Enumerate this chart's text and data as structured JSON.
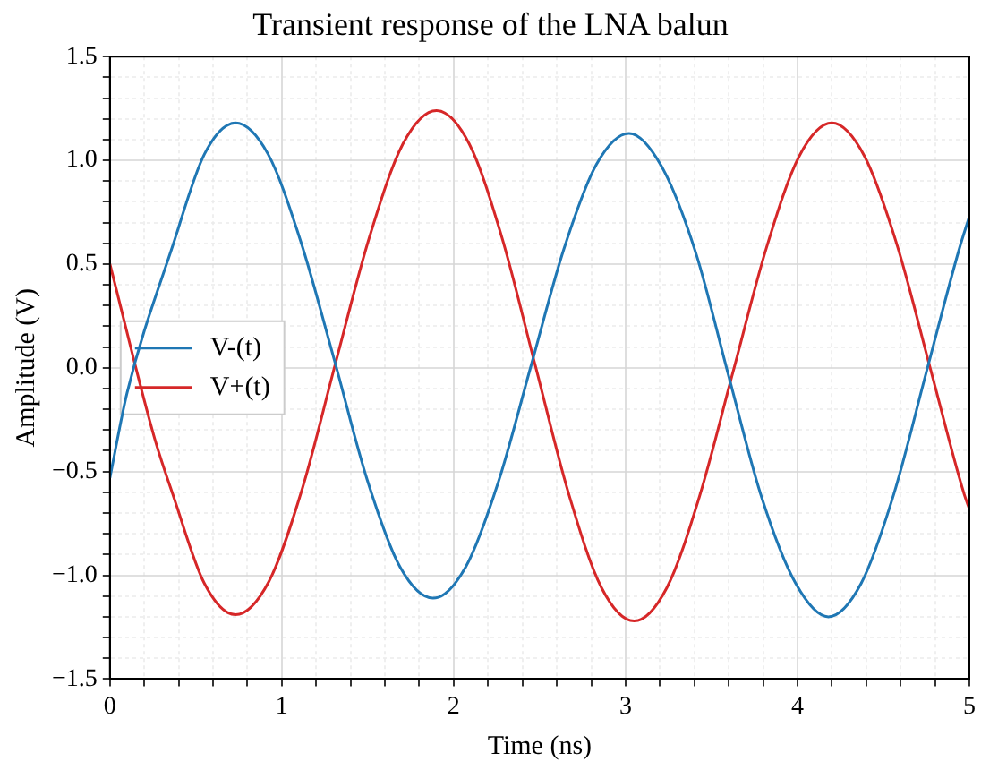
{
  "chart_data": {
    "type": "line",
    "title": "Transient response of the LNA balun",
    "xlabel": "Time (ns)",
    "ylabel": "Amplitude (V)",
    "xlim": [
      0,
      5
    ],
    "ylim": [
      -1.5,
      1.5
    ],
    "xticks": [
      0,
      {
        "value": 0.2,
        "label": null
      },
      {
        "value": 0.4,
        "label": null
      },
      {
        "value": 0.6,
        "label": null
      },
      {
        "value": 0.8,
        "label": null
      },
      1,
      {
        "value": 1.2,
        "label": null
      },
      {
        "value": 1.4,
        "label": null
      },
      {
        "value": 1.6,
        "label": null
      },
      {
        "value": 1.8,
        "label": null
      },
      2,
      {
        "value": 2.2,
        "label": null
      },
      {
        "value": 2.4,
        "label": null
      },
      {
        "value": 2.6,
        "label": null
      },
      {
        "value": 2.8,
        "label": null
      },
      3,
      {
        "value": 3.2,
        "label": null
      },
      {
        "value": 3.4,
        "label": null
      },
      {
        "value": 3.6,
        "label": null
      },
      {
        "value": 3.8,
        "label": null
      },
      4,
      {
        "value": 4.2,
        "label": null
      },
      {
        "value": 4.4,
        "label": null
      },
      {
        "value": 4.6,
        "label": null
      },
      {
        "value": 4.8,
        "label": null
      },
      5
    ],
    "yticks": [
      {
        "value": -1.5,
        "label": "−1.5"
      },
      {
        "value": -1.4,
        "label": null
      },
      {
        "value": -1.3,
        "label": null
      },
      {
        "value": -1.2,
        "label": null
      },
      {
        "value": -1.1,
        "label": null
      },
      {
        "value": -1,
        "label": "−1.0"
      },
      {
        "value": -0.9,
        "label": null
      },
      {
        "value": -0.8,
        "label": null
      },
      {
        "value": -0.7,
        "label": null
      },
      {
        "value": -0.6,
        "label": null
      },
      {
        "value": -0.5,
        "label": "−0.5"
      },
      {
        "value": -0.4,
        "label": null
      },
      {
        "value": -0.3,
        "label": null
      },
      {
        "value": -0.2,
        "label": null
      },
      {
        "value": -0.1,
        "label": null
      },
      {
        "value": 0,
        "label": "0.0"
      },
      {
        "value": 0.1,
        "label": null
      },
      {
        "value": 0.2,
        "label": null
      },
      {
        "value": 0.3,
        "label": null
      },
      {
        "value": 0.4,
        "label": null
      },
      0.5,
      {
        "value": 0.6,
        "label": null
      },
      {
        "value": 0.7,
        "label": null
      },
      {
        "value": 0.8,
        "label": null
      },
      {
        "value": 0.9,
        "label": null
      },
      {
        "value": 1,
        "label": "1.0"
      },
      {
        "value": 1.1,
        "label": null
      },
      {
        "value": 1.2,
        "label": null
      },
      {
        "value": 1.3,
        "label": null
      },
      {
        "value": 1.4,
        "label": null
      },
      1.5
    ],
    "grid": true,
    "legend": "center left",
    "marker": "none",
    "line_style": "solid",
    "series": [
      {
        "name": "V-(t)",
        "color": "#1f77b4",
        "x": [
          0,
          0.1,
          0.37,
          0.55,
          0.73,
          0.92,
          1.11,
          1.305,
          1.497,
          1.688,
          1.88,
          2.07,
          2.26,
          2.45,
          2.64,
          2.83,
          3.02,
          3.21,
          3.41,
          3.6,
          3.79,
          3.99,
          4.18,
          4.37,
          4.56,
          4.75,
          4.94,
          5
        ],
        "values": [
          -0.53,
          -0.12,
          0.6,
          1.03,
          1.18,
          1.03,
          0.61,
          0.04,
          -0.54,
          -0.96,
          -1.11,
          -0.96,
          -0.55,
          0.01,
          0.57,
          0.98,
          1.13,
          0.97,
          0.55,
          -0.04,
          -0.62,
          -1.04,
          -1.2,
          -1.04,
          -0.61,
          -0.02,
          0.57,
          0.73
        ]
      },
      {
        "name": "V+(t)",
        "color": "#d62728",
        "x": [
          0,
          0.26,
          0.37,
          0.55,
          0.73,
          0.925,
          1.12,
          1.315,
          1.51,
          1.705,
          1.9,
          2.09,
          2.28,
          2.475,
          2.67,
          2.86,
          3.05,
          3.24,
          3.43,
          3.625,
          3.82,
          4.01,
          4.2,
          4.39,
          4.58,
          4.775,
          4.97,
          5
        ],
        "values": [
          0.5,
          -0.34,
          -0.62,
          -1.04,
          -1.19,
          -1.03,
          -0.58,
          0.03,
          0.63,
          1.08,
          1.24,
          1.08,
          0.63,
          0.01,
          -0.61,
          -1.06,
          -1.22,
          -1.06,
          -0.62,
          -0.02,
          0.58,
          1.02,
          1.18,
          1.02,
          0.59,
          -0.01,
          -0.61,
          -0.68
        ]
      }
    ]
  }
}
